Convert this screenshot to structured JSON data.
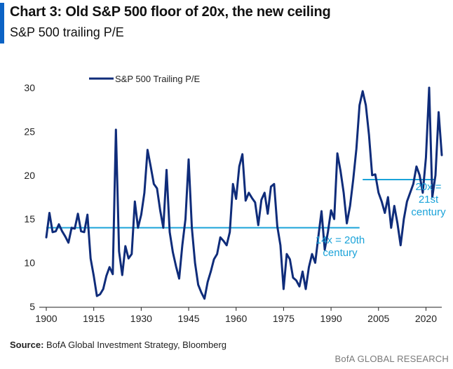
{
  "header": {
    "title": "Chart 3: Old S&P 500 floor of 20x, the new ceiling",
    "subtitle": "S&P 500 trailing P/E"
  },
  "footer": {
    "source_label": "Source:",
    "source_text": "BofA Global Investment Strategy, Bloomberg",
    "brand": "BofA GLOBAL RESEARCH"
  },
  "colors": {
    "accent": "#0b63c5",
    "series": "#0f2c7a",
    "reference": "#1ba3d9"
  },
  "chart_data": {
    "type": "line",
    "title": "Chart 3: Old S&P 500 floor of 20x, the new ceiling",
    "subtitle": "S&P 500 trailing P/E",
    "xlabel": "",
    "ylabel": "",
    "xlim": [
      1900,
      2025
    ],
    "ylim": [
      5,
      30
    ],
    "x_ticks": [
      1900,
      1915,
      1930,
      1945,
      1960,
      1975,
      1990,
      2005,
      2020
    ],
    "y_ticks": [
      5,
      10,
      15,
      20,
      25,
      30
    ],
    "grid": false,
    "legend_position": "top-left",
    "series": [
      {
        "name": "S&P 500 Trailing P/E",
        "color": "#0f2c7a",
        "points": [
          [
            1900,
            12.9
          ],
          [
            1901,
            15.7
          ],
          [
            1902,
            13.5
          ],
          [
            1903,
            13.6
          ],
          [
            1904,
            14.4
          ],
          [
            1905,
            13.6
          ],
          [
            1906,
            13.0
          ],
          [
            1907,
            12.3
          ],
          [
            1908,
            14.0
          ],
          [
            1909,
            13.9
          ],
          [
            1910,
            15.6
          ],
          [
            1911,
            13.6
          ],
          [
            1912,
            13.5
          ],
          [
            1913,
            15.5
          ],
          [
            1914,
            10.5
          ],
          [
            1915,
            8.5
          ],
          [
            1916,
            6.2
          ],
          [
            1917,
            6.4
          ],
          [
            1918,
            7.0
          ],
          [
            1919,
            8.5
          ],
          [
            1920,
            9.5
          ],
          [
            1921,
            8.7
          ],
          [
            1922,
            25.2
          ],
          [
            1923,
            11.3
          ],
          [
            1924,
            8.6
          ],
          [
            1925,
            11.9
          ],
          [
            1926,
            10.5
          ],
          [
            1927,
            11.0
          ],
          [
            1928,
            17.0
          ],
          [
            1929,
            14.0
          ],
          [
            1930,
            15.5
          ],
          [
            1931,
            18.0
          ],
          [
            1932,
            22.9
          ],
          [
            1933,
            21.0
          ],
          [
            1934,
            19.0
          ],
          [
            1935,
            18.5
          ],
          [
            1936,
            16.0
          ],
          [
            1937,
            14.0
          ],
          [
            1938,
            20.6
          ],
          [
            1939,
            13.5
          ],
          [
            1940,
            11.2
          ],
          [
            1941,
            9.6
          ],
          [
            1942,
            8.2
          ],
          [
            1943,
            12.0
          ],
          [
            1944,
            15.0
          ],
          [
            1945,
            21.8
          ],
          [
            1946,
            14.0
          ],
          [
            1947,
            10.0
          ],
          [
            1948,
            7.5
          ],
          [
            1949,
            6.6
          ],
          [
            1950,
            5.9
          ],
          [
            1951,
            7.8
          ],
          [
            1952,
            9.0
          ],
          [
            1953,
            10.4
          ],
          [
            1954,
            11.0
          ],
          [
            1955,
            12.9
          ],
          [
            1956,
            12.5
          ],
          [
            1957,
            12.0
          ],
          [
            1958,
            13.5
          ],
          [
            1959,
            19.0
          ],
          [
            1960,
            17.3
          ],
          [
            1961,
            21.0
          ],
          [
            1962,
            22.4
          ],
          [
            1963,
            17.1
          ],
          [
            1964,
            18.0
          ],
          [
            1965,
            17.4
          ],
          [
            1966,
            16.9
          ],
          [
            1967,
            14.3
          ],
          [
            1968,
            17.2
          ],
          [
            1969,
            18.0
          ],
          [
            1970,
            15.6
          ],
          [
            1971,
            18.7
          ],
          [
            1972,
            19.0
          ],
          [
            1973,
            14.2
          ],
          [
            1974,
            12.0
          ],
          [
            1975,
            7.0
          ],
          [
            1976,
            11.0
          ],
          [
            1977,
            10.4
          ],
          [
            1978,
            8.3
          ],
          [
            1979,
            8.0
          ],
          [
            1980,
            7.3
          ],
          [
            1981,
            9.0
          ],
          [
            1982,
            7.0
          ],
          [
            1983,
            9.5
          ],
          [
            1984,
            11.0
          ],
          [
            1985,
            10.0
          ],
          [
            1986,
            13.0
          ],
          [
            1987,
            15.9
          ],
          [
            1988,
            11.5
          ],
          [
            1989,
            13.5
          ],
          [
            1990,
            16.0
          ],
          [
            1991,
            15.0
          ],
          [
            1992,
            22.5
          ],
          [
            1993,
            20.5
          ],
          [
            1994,
            18.0
          ],
          [
            1995,
            14.5
          ],
          [
            1996,
            16.5
          ],
          [
            1997,
            19.5
          ],
          [
            1998,
            23.0
          ],
          [
            1999,
            28.0
          ],
          [
            2000,
            29.6
          ],
          [
            2001,
            28.0
          ],
          [
            2002,
            24.6
          ],
          [
            2003,
            20.0
          ],
          [
            2004,
            20.1
          ],
          [
            2005,
            18.0
          ],
          [
            2006,
            17.0
          ],
          [
            2007,
            15.7
          ],
          [
            2008,
            17.5
          ],
          [
            2009,
            14.0
          ],
          [
            2010,
            16.5
          ],
          [
            2011,
            14.5
          ],
          [
            2012,
            12.0
          ],
          [
            2013,
            15.0
          ],
          [
            2014,
            17.0
          ],
          [
            2015,
            18.0
          ],
          [
            2016,
            19.0
          ],
          [
            2017,
            21.0
          ],
          [
            2018,
            20.0
          ],
          [
            2019,
            18.0
          ],
          [
            2020,
            22.0
          ],
          [
            2021,
            30.0
          ],
          [
            2022,
            17.5
          ],
          [
            2023,
            20.0
          ],
          [
            2024,
            27.2
          ],
          [
            2025,
            22.3
          ]
        ]
      }
    ],
    "reference_lines": [
      {
        "y": 14,
        "x_start": 1900,
        "x_end": 1999,
        "color": "#1ba3d9",
        "label": [
          "14x = 20th",
          "century"
        ]
      },
      {
        "y": 19.5,
        "x_start": 2000,
        "x_end": 2023,
        "color": "#1ba3d9",
        "label": [
          "20x =",
          "21st",
          "century"
        ]
      }
    ]
  }
}
